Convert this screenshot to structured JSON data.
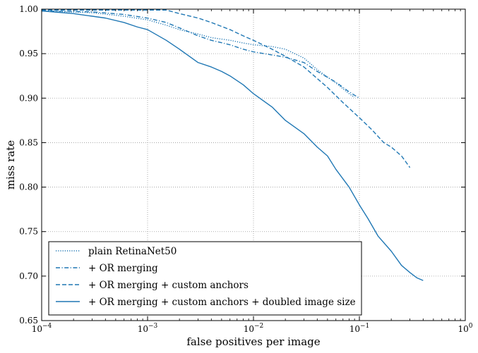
{
  "chart_data": {
    "type": "line",
    "title": "",
    "xlabel": "false positives per image",
    "ylabel": "miss rate",
    "x_scale": "log",
    "xlim": [
      0.0001,
      1
    ],
    "ylim": [
      0.65,
      1.0
    ],
    "grid": true,
    "legend_position": "lower-left",
    "x_ticks": [
      {
        "value": 0.0001,
        "base": "10",
        "exp": "−4"
      },
      {
        "value": 0.001,
        "base": "10",
        "exp": "−3"
      },
      {
        "value": 0.01,
        "base": "10",
        "exp": "−2"
      },
      {
        "value": 0.1,
        "base": "10",
        "exp": "−1"
      },
      {
        "value": 1,
        "base": "10",
        "exp": "0"
      }
    ],
    "y_ticks": [
      "0.65",
      "0.70",
      "0.75",
      "0.80",
      "0.85",
      "0.90",
      "0.95",
      "1.00"
    ],
    "series": [
      {
        "name": "plain RetinaNet50",
        "style": "dotted",
        "color": "#1f77b4",
        "points": [
          [
            0.0001,
            0.998
          ],
          [
            0.0003,
            0.996
          ],
          [
            0.0006,
            0.992
          ],
          [
            0.001,
            0.988
          ],
          [
            0.0015,
            0.982
          ],
          [
            0.002,
            0.977
          ],
          [
            0.003,
            0.972
          ],
          [
            0.004,
            0.968
          ],
          [
            0.006,
            0.965
          ],
          [
            0.008,
            0.962
          ],
          [
            0.01,
            0.96
          ],
          [
            0.015,
            0.958
          ],
          [
            0.02,
            0.955
          ],
          [
            0.03,
            0.945
          ],
          [
            0.04,
            0.932
          ],
          [
            0.06,
            0.917
          ],
          [
            0.08,
            0.905
          ],
          [
            0.09,
            0.901
          ]
        ]
      },
      {
        "name": "+ OR merging",
        "style": "dashdot",
        "color": "#1f77b4",
        "points": [
          [
            0.0001,
            0.998
          ],
          [
            0.0003,
            0.997
          ],
          [
            0.0006,
            0.994
          ],
          [
            0.001,
            0.99
          ],
          [
            0.0015,
            0.985
          ],
          [
            0.002,
            0.979
          ],
          [
            0.003,
            0.97
          ],
          [
            0.004,
            0.965
          ],
          [
            0.006,
            0.96
          ],
          [
            0.008,
            0.955
          ],
          [
            0.01,
            0.952
          ],
          [
            0.02,
            0.946
          ],
          [
            0.03,
            0.94
          ],
          [
            0.04,
            0.93
          ],
          [
            0.06,
            0.918
          ],
          [
            0.08,
            0.907
          ],
          [
            0.1,
            0.9
          ]
        ]
      },
      {
        "name": "+ OR merging + custom anchors",
        "style": "dashed",
        "color": "#1f77b4",
        "points": [
          [
            0.0001,
            0.999
          ],
          [
            0.0005,
            0.999
          ],
          [
            0.001,
            0.999
          ],
          [
            0.0015,
            0.999
          ],
          [
            0.002,
            0.995
          ],
          [
            0.003,
            0.99
          ],
          [
            0.004,
            0.985
          ],
          [
            0.006,
            0.977
          ],
          [
            0.008,
            0.97
          ],
          [
            0.01,
            0.965
          ],
          [
            0.015,
            0.955
          ],
          [
            0.02,
            0.947
          ],
          [
            0.03,
            0.935
          ],
          [
            0.04,
            0.922
          ],
          [
            0.05,
            0.912
          ],
          [
            0.07,
            0.895
          ],
          [
            0.1,
            0.878
          ],
          [
            0.13,
            0.865
          ],
          [
            0.17,
            0.85
          ],
          [
            0.2,
            0.845
          ],
          [
            0.25,
            0.835
          ],
          [
            0.3,
            0.822
          ]
        ]
      },
      {
        "name": "+ OR merging + custom anchors + doubled image size",
        "style": "solid",
        "color": "#1f77b4",
        "points": [
          [
            0.0001,
            0.998
          ],
          [
            0.0002,
            0.995
          ],
          [
            0.0004,
            0.99
          ],
          [
            0.0006,
            0.985
          ],
          [
            0.0008,
            0.98
          ],
          [
            0.001,
            0.977
          ],
          [
            0.0015,
            0.965
          ],
          [
            0.002,
            0.955
          ],
          [
            0.003,
            0.94
          ],
          [
            0.004,
            0.935
          ],
          [
            0.005,
            0.93
          ],
          [
            0.006,
            0.925
          ],
          [
            0.008,
            0.915
          ],
          [
            0.01,
            0.905
          ],
          [
            0.015,
            0.89
          ],
          [
            0.02,
            0.875
          ],
          [
            0.03,
            0.86
          ],
          [
            0.04,
            0.845
          ],
          [
            0.05,
            0.835
          ],
          [
            0.06,
            0.82
          ],
          [
            0.08,
            0.8
          ],
          [
            0.1,
            0.78
          ],
          [
            0.12,
            0.765
          ],
          [
            0.15,
            0.745
          ],
          [
            0.2,
            0.728
          ],
          [
            0.25,
            0.712
          ],
          [
            0.3,
            0.704
          ],
          [
            0.35,
            0.698
          ],
          [
            0.4,
            0.695
          ]
        ]
      }
    ]
  }
}
